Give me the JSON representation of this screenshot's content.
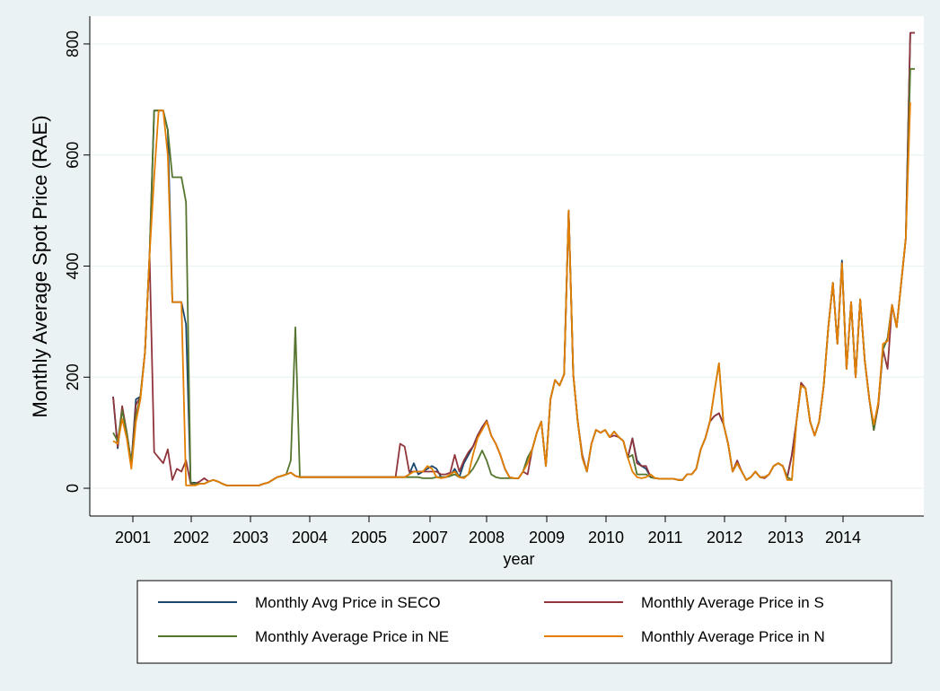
{
  "chart_data": {
    "type": "line",
    "title": "",
    "xlabel": "year",
    "ylabel": "Monthly Average Spot Price (RAE)",
    "ylim": [
      -50,
      850
    ],
    "y_ticks": [
      0,
      200,
      400,
      600,
      800
    ],
    "y_tick_labels": [
      "0",
      "200",
      "400",
      "600",
      "800"
    ],
    "x_ticks": [
      "2001",
      "2002",
      "2003",
      "2004",
      "2005",
      "2007",
      "2008",
      "2009",
      "2010",
      "2011",
      "2012",
      "2013",
      "2014"
    ],
    "grid": true,
    "legend": {
      "placement": "bottom",
      "columns": 2
    },
    "x_start_index": 0,
    "series": [
      {
        "name": "Monthly Avg Price in SECO",
        "color": "#1a476f",
        "values": [
          165,
          72,
          145,
          100,
          45,
          160,
          165,
          245,
          420,
          680,
          680,
          680,
          645,
          335,
          335,
          335,
          295,
          10,
          10,
          8,
          8,
          12,
          15,
          12,
          8,
          5,
          5,
          5,
          5,
          5,
          5,
          5,
          5,
          8,
          10,
          15,
          20,
          22,
          25,
          28,
          22,
          20,
          20,
          20,
          20,
          20,
          20,
          20,
          20,
          20,
          20,
          20,
          20,
          20,
          20,
          20,
          20,
          20,
          20,
          20,
          20,
          20,
          20,
          20,
          20,
          25,
          45,
          25,
          30,
          35,
          40,
          35,
          20,
          20,
          22,
          35,
          20,
          45,
          60,
          75,
          95,
          110,
          122,
          95,
          80,
          60,
          35,
          20,
          18,
          18,
          30,
          55,
          70,
          100,
          120,
          40,
          160,
          195,
          185,
          205,
          500,
          205,
          120,
          55,
          30,
          80,
          105,
          100,
          105,
          92,
          102,
          92,
          85,
          55,
          90,
          50,
          40,
          35,
          20,
          18,
          17,
          17,
          17,
          17,
          15,
          15,
          25,
          25,
          35,
          70,
          90,
          120,
          130,
          135,
          115,
          80,
          30,
          45,
          30,
          15,
          20,
          30,
          20,
          20,
          25,
          40,
          45,
          40,
          20,
          60,
          120,
          185,
          180,
          120,
          95,
          120,
          185,
          290,
          370,
          260,
          410,
          215,
          335,
          200,
          340,
          230,
          160,
          105,
          155,
          250,
          270,
          330,
          290,
          370,
          450,
          820,
          820
        ]
      },
      {
        "name": "Monthly Average Price in S",
        "color": "#90353b",
        "values": [
          165,
          75,
          148,
          100,
          45,
          150,
          165,
          245,
          420,
          65,
          55,
          45,
          70,
          15,
          35,
          30,
          50,
          8,
          8,
          12,
          18,
          12,
          15,
          12,
          8,
          5,
          5,
          5,
          5,
          5,
          5,
          5,
          5,
          8,
          10,
          15,
          20,
          22,
          25,
          28,
          22,
          20,
          20,
          20,
          20,
          20,
          20,
          20,
          20,
          20,
          20,
          20,
          20,
          20,
          20,
          20,
          20,
          20,
          20,
          20,
          20,
          20,
          20,
          80,
          75,
          30,
          30,
          30,
          30,
          30,
          30,
          30,
          25,
          25,
          28,
          60,
          30,
          50,
          65,
          75,
          95,
          110,
          122,
          95,
          80,
          60,
          35,
          20,
          18,
          18,
          30,
          25,
          70,
          100,
          120,
          40,
          160,
          195,
          185,
          205,
          500,
          205,
          120,
          60,
          30,
          80,
          105,
          100,
          105,
          92,
          95,
          92,
          85,
          55,
          90,
          45,
          40,
          40,
          20,
          18,
          17,
          17,
          17,
          17,
          15,
          15,
          25,
          25,
          35,
          70,
          90,
          120,
          130,
          135,
          115,
          80,
          30,
          50,
          30,
          15,
          20,
          30,
          20,
          18,
          25,
          40,
          45,
          40,
          20,
          60,
          120,
          190,
          180,
          120,
          95,
          120,
          185,
          290,
          370,
          260,
          405,
          215,
          335,
          200,
          340,
          230,
          160,
          105,
          150,
          250,
          215,
          330,
          290,
          370,
          450,
          820,
          820
        ]
      },
      {
        "name": "Monthly Average Price in NE",
        "color": "#55752f",
        "values": [
          100,
          85,
          140,
          100,
          45,
          130,
          165,
          245,
          420,
          680,
          680,
          680,
          645,
          560,
          560,
          560,
          515,
          10,
          8,
          8,
          8,
          12,
          15,
          12,
          8,
          5,
          5,
          5,
          5,
          5,
          5,
          5,
          5,
          8,
          10,
          15,
          20,
          22,
          25,
          50,
          290,
          20,
          20,
          20,
          20,
          20,
          20,
          20,
          20,
          20,
          20,
          20,
          20,
          20,
          20,
          20,
          20,
          20,
          20,
          20,
          20,
          20,
          20,
          20,
          20,
          20,
          20,
          20,
          18,
          18,
          18,
          20,
          20,
          20,
          22,
          25,
          20,
          20,
          25,
          35,
          50,
          68,
          50,
          25,
          20,
          18,
          18,
          18,
          18,
          18,
          30,
          55,
          70,
          100,
          120,
          40,
          160,
          195,
          185,
          205,
          500,
          205,
          120,
          55,
          30,
          80,
          105,
          100,
          105,
          92,
          102,
          92,
          85,
          55,
          60,
          25,
          25,
          25,
          20,
          18,
          17,
          17,
          17,
          17,
          15,
          15,
          25,
          25,
          35,
          70,
          90,
          120,
          175,
          225,
          115,
          80,
          30,
          45,
          30,
          15,
          20,
          30,
          20,
          20,
          25,
          40,
          45,
          40,
          20,
          15,
          120,
          185,
          180,
          120,
          95,
          120,
          185,
          290,
          370,
          260,
          405,
          215,
          335,
          200,
          340,
          230,
          160,
          105,
          155,
          250,
          270,
          330,
          290,
          370,
          450,
          755,
          755
        ]
      },
      {
        "name": "Monthly Average Price in N",
        "color": "#e37e00",
        "values": [
          85,
          80,
          125,
          90,
          35,
          120,
          160,
          245,
          420,
          560,
          680,
          680,
          600,
          335,
          335,
          335,
          5,
          5,
          5,
          8,
          8,
          12,
          15,
          12,
          8,
          5,
          5,
          5,
          5,
          5,
          5,
          5,
          5,
          8,
          10,
          15,
          20,
          22,
          25,
          28,
          22,
          20,
          20,
          20,
          20,
          20,
          20,
          20,
          20,
          20,
          20,
          20,
          20,
          20,
          20,
          20,
          20,
          20,
          20,
          20,
          20,
          20,
          20,
          20,
          20,
          25,
          30,
          30,
          30,
          40,
          35,
          20,
          18,
          20,
          25,
          30,
          20,
          18,
          25,
          60,
          90,
          105,
          120,
          95,
          80,
          60,
          35,
          20,
          18,
          18,
          30,
          45,
          70,
          100,
          120,
          40,
          160,
          195,
          185,
          205,
          500,
          205,
          120,
          55,
          30,
          80,
          105,
          100,
          105,
          92,
          102,
          92,
          85,
          55,
          30,
          20,
          18,
          20,
          25,
          18,
          17,
          17,
          17,
          17,
          15,
          15,
          25,
          25,
          35,
          70,
          90,
          120,
          175,
          225,
          115,
          80,
          30,
          45,
          30,
          15,
          20,
          30,
          20,
          20,
          25,
          40,
          45,
          40,
          15,
          15,
          120,
          185,
          180,
          120,
          95,
          120,
          185,
          290,
          370,
          260,
          405,
          215,
          335,
          200,
          340,
          230,
          160,
          115,
          155,
          260,
          265,
          330,
          290,
          370,
          450,
          695
        ]
      }
    ]
  }
}
